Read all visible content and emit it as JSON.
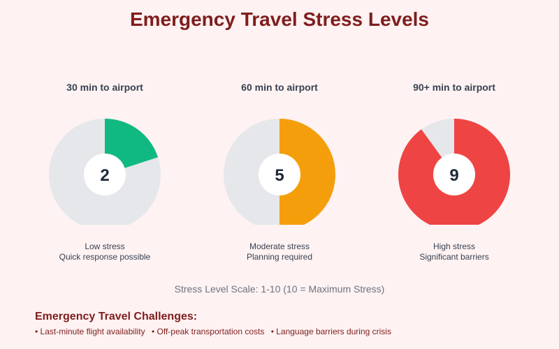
{
  "title": "Emergency Travel Stress Levels",
  "chart_data": {
    "type": "pie",
    "scale_max": 10,
    "gauges": [
      {
        "category": "30 min to airport",
        "value": 2,
        "value_label": "2",
        "color": "#10b981",
        "desc_line1": "Low stress",
        "desc_line2": "Quick response possible"
      },
      {
        "category": "60 min to airport",
        "value": 5,
        "value_label": "5",
        "color": "#f59e0b",
        "desc_line1": "Moderate stress",
        "desc_line2": "Planning required"
      },
      {
        "category": "90+ min to airport",
        "value": 9,
        "value_label": "9",
        "color": "#ef4444",
        "desc_line1": "High stress",
        "desc_line2": "Significant barriers"
      }
    ],
    "track_color": "#e5e7eb"
  },
  "scale_note": "Stress Level Scale: 1-10 (10 = Maximum Stress)",
  "challenges": {
    "title": "Emergency Travel Challenges:",
    "items": [
      "• Last-minute flight availability",
      "• Off-peak transportation costs",
      "• Language barriers during crisis"
    ]
  }
}
